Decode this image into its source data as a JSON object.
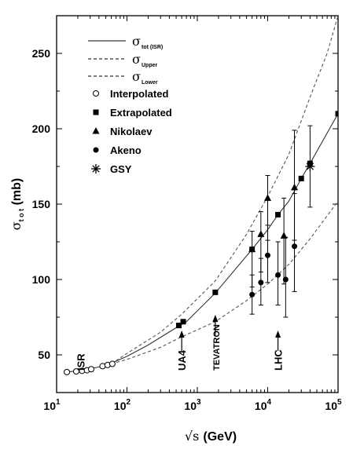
{
  "chart_data": {
    "type": "scatter",
    "xscale": "log",
    "xlim": [
      10,
      100000
    ],
    "ylim": [
      25,
      275
    ],
    "xticks": [
      10,
      100,
      1000,
      10000,
      100000
    ],
    "xtick_labels": [
      {
        "base": "10",
        "exp": "1"
      },
      {
        "base": "10",
        "exp": "2"
      },
      {
        "base": "10",
        "exp": "3"
      },
      {
        "base": "10",
        "exp": "4"
      },
      {
        "base": "10",
        "exp": "5"
      }
    ],
    "yticks": [
      50,
      100,
      150,
      200,
      250
    ],
    "ytick_labels": [
      "50",
      "100",
      "150",
      "200",
      "250"
    ],
    "xlabel": {
      "sqrt": "√s",
      "unit": "(GeV)"
    },
    "ylabel": {
      "sigma": "σ",
      "sub": "t o t",
      "unit": "(mb)"
    },
    "legend": {
      "placement": "top-left",
      "lines": [
        {
          "symbol": "σ",
          "sub": "tot (ISR)",
          "style": "solid"
        },
        {
          "symbol": "σ",
          "sub": "Upper",
          "style": "dashed"
        },
        {
          "symbol": "σ",
          "sub": "Lower",
          "style": "dashed"
        }
      ],
      "markers": [
        {
          "marker": "open-circle",
          "label": "Interpolated"
        },
        {
          "marker": "square",
          "label": "Extrapolated"
        },
        {
          "marker": "triangle",
          "label": "Nikolaev"
        },
        {
          "marker": "circle",
          "label": "Akeno"
        },
        {
          "marker": "asterisk",
          "label": "GSY"
        }
      ]
    },
    "series": [
      {
        "name": "tot (ISR)",
        "kind": "line",
        "style": "solid",
        "x": [
          14,
          20,
          30,
          40,
          60,
          100,
          200,
          500,
          700,
          1800,
          6000,
          10000,
          14000,
          20000,
          30000,
          40000,
          100000
        ],
        "y": [
          38.6,
          39.5,
          40.8,
          42.0,
          44.5,
          49.0,
          56.5,
          68.0,
          72.0,
          91.0,
          120.0,
          133.0,
          143.0,
          152.0,
          167.0,
          177.0,
          210.0
        ]
      },
      {
        "name": "Upper",
        "kind": "line",
        "style": "dashed",
        "x": [
          60,
          100,
          300,
          600,
          1800,
          5000,
          10000,
          20000,
          40000,
          70000,
          100000
        ],
        "y": [
          44.0,
          51.0,
          65.0,
          77.0,
          99.0,
          130.0,
          155.0,
          183.0,
          221.0,
          250.0,
          275.0
        ]
      },
      {
        "name": "Lower",
        "kind": "line",
        "style": "dashed",
        "x": [
          60,
          100,
          300,
          600,
          1800,
          5000,
          10000,
          20000,
          40000,
          100000
        ],
        "y": [
          44.0,
          47.0,
          55.0,
          62.0,
          72.0,
          86.0,
          97.0,
          110.0,
          127.0,
          152.0
        ]
      },
      {
        "name": "Interpolated",
        "kind": "points",
        "marker": "open-circle",
        "x": [
          14,
          19,
          23,
          27,
          31,
          45,
          53,
          62
        ],
        "y": [
          38.6,
          39.0,
          39.4,
          39.8,
          40.5,
          42.5,
          43.3,
          44.0
        ]
      },
      {
        "name": "Extrapolated",
        "kind": "points",
        "marker": "square",
        "x": [
          546,
          630,
          1800,
          6000,
          14000,
          30000,
          40000,
          100000
        ],
        "y": [
          69.5,
          72.0,
          91.5,
          120.0,
          143.0,
          167.0,
          177.0,
          210.0
        ],
        "err_lo": [
          0,
          0,
          0,
          0,
          0,
          0,
          0,
          0
        ],
        "err_hi": [
          0,
          0,
          0,
          0,
          0,
          0,
          0,
          0
        ]
      },
      {
        "name": "Nikolaev",
        "kind": "points",
        "marker": "triangle",
        "x": [
          6000,
          8000,
          10000,
          17000,
          24000
        ],
        "y": [
          120.0,
          130.0,
          154.0,
          129.0,
          161.0
        ],
        "err_lo": [
          25,
          25,
          28,
          32,
          35
        ],
        "err_hi": [
          12,
          15,
          15,
          25,
          38
        ]
      },
      {
        "name": "Akeno",
        "kind": "points",
        "marker": "circle",
        "x": [
          6000,
          8000,
          10000,
          14000,
          18000,
          24000
        ],
        "y": [
          90.0,
          98.0,
          116.0,
          103.0,
          100.0,
          122.0
        ],
        "err_lo": [
          13,
          15,
          18,
          20,
          25,
          30
        ],
        "err_hi": [
          13,
          16,
          20,
          22,
          28,
          35
        ]
      },
      {
        "name": "GSY",
        "kind": "points",
        "marker": "asterisk",
        "x": [
          40000
        ],
        "y": [
          175.0
        ],
        "err_lo": [
          27
        ],
        "err_hi": [
          27
        ]
      }
    ],
    "annotations": [
      {
        "text": "ISR",
        "x": 22,
        "arrow": false
      },
      {
        "text": "UA4",
        "x": 600,
        "arrow": true
      },
      {
        "text": "TEVATRON",
        "x": 1800,
        "arrow": true
      },
      {
        "text": "LHC",
        "x": 14000,
        "arrow": true
      }
    ]
  }
}
